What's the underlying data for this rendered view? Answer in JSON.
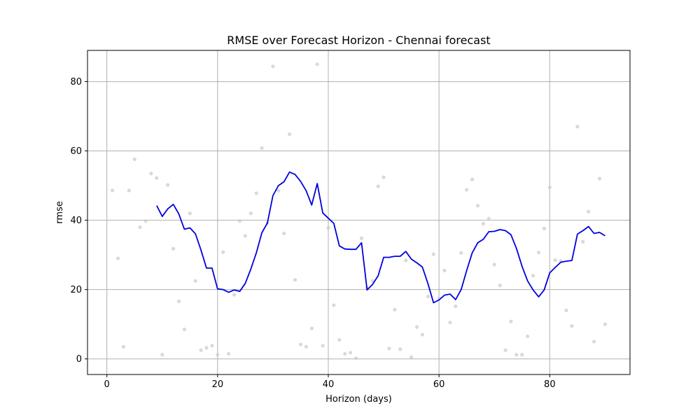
{
  "chart_data": {
    "type": "line",
    "title": "RMSE over Forecast Horizon - Chennai forecast",
    "xlabel": "Horizon (days)",
    "ylabel": "rmse",
    "xlim": [
      -3.5,
      94.5
    ],
    "ylim": [
      -4.5,
      89
    ],
    "x_ticks": [
      0,
      20,
      40,
      60,
      80
    ],
    "y_ticks": [
      0,
      20,
      40,
      60,
      80
    ],
    "grid": true,
    "line_color": "#0000dd",
    "scatter_color": "#cccccc",
    "series": [
      {
        "type": "line",
        "x": [
          9,
          10,
          11,
          12,
          13,
          14,
          15,
          16,
          17,
          18,
          19,
          20,
          21,
          22,
          23,
          24,
          25,
          26,
          27,
          28,
          29,
          30,
          31,
          32,
          33,
          34,
          35,
          36,
          37,
          38,
          39,
          40,
          41,
          42,
          43,
          44,
          45,
          46,
          47,
          48,
          49,
          50,
          51,
          52,
          53,
          54,
          55,
          56,
          57,
          58,
          59,
          60,
          61,
          62,
          63,
          64,
          65,
          66,
          67,
          68,
          69,
          70,
          71,
          72,
          73,
          74,
          75,
          76,
          77,
          78,
          79,
          80,
          81,
          82,
          83,
          84,
          85,
          86,
          87,
          88,
          89,
          90
        ],
        "y": [
          44.2,
          41.1,
          43.3,
          44.6,
          41.8,
          37.4,
          37.8,
          36.1,
          31.4,
          26.2,
          26.2,
          20.2,
          20.0,
          19.2,
          19.9,
          19.5,
          21.8,
          25.9,
          30.6,
          36.4,
          39.2,
          47.1,
          50.0,
          51.1,
          53.9,
          53.2,
          51.2,
          48.5,
          44.4,
          50.6,
          42.1,
          40.6,
          39.1,
          32.6,
          31.7,
          31.6,
          31.6,
          33.5,
          19.9,
          21.5,
          24.0,
          29.3,
          29.3,
          29.6,
          29.6,
          31.0,
          28.8,
          27.7,
          26.5,
          21.7,
          16.2,
          17.0,
          18.4,
          18.7,
          17.1,
          20.0,
          25.5,
          30.6,
          33.5,
          34.5,
          36.7,
          36.8,
          37.3,
          37.0,
          35.8,
          31.8,
          26.7,
          22.5,
          19.9,
          17.9,
          19.9,
          24.8,
          26.4,
          27.9,
          28.2,
          28.4,
          36.0,
          37.0,
          38.2,
          36.2,
          36.5,
          35.5
        ]
      },
      {
        "type": "scatter",
        "x": [
          1,
          2,
          3,
          4,
          5,
          6,
          7,
          8,
          9,
          10,
          11,
          12,
          13,
          14,
          15,
          16,
          17,
          18,
          19,
          20,
          21,
          22,
          23,
          24,
          25,
          26,
          27,
          28,
          29,
          30,
          31,
          32,
          33,
          34,
          35,
          36,
          37,
          38,
          39,
          40,
          41,
          42,
          43,
          44,
          45,
          46,
          47,
          48,
          49,
          50,
          51,
          52,
          53,
          54,
          55,
          56,
          57,
          58,
          59,
          60,
          61,
          62,
          63,
          64,
          65,
          66,
          67,
          68,
          69,
          70,
          71,
          72,
          73,
          74,
          75,
          76,
          77,
          78,
          79,
          80,
          81,
          82,
          83,
          84,
          85,
          86,
          87,
          88,
          89,
          90
        ],
        "y": [
          48.6,
          29,
          3.5,
          48.6,
          57.6,
          38,
          39.8,
          53.5,
          52.2,
          1.2,
          50.2,
          31.8,
          16.6,
          8.5,
          42,
          22.5,
          2.5,
          3.2,
          3.8,
          1.2,
          30.8,
          1.5,
          18.5,
          39.8,
          35.5,
          42,
          47.8,
          60.8,
          39.2,
          84.4,
          48.5,
          36.2,
          64.8,
          22.8,
          4.2,
          3.5,
          8.8,
          85,
          3.8,
          37.8,
          15.5,
          5.5,
          1.5,
          1.8,
          0.2,
          34.8,
          20.5,
          22.5,
          49.8,
          52.4,
          3,
          14.2,
          2.8,
          28.4,
          0.5,
          9.2,
          7,
          18,
          30.2,
          17.5,
          25.5,
          10.5,
          15.2,
          30.6,
          48.8,
          51.8,
          44.2,
          39,
          40.5,
          27.2,
          21.2,
          2.5,
          10.8,
          1.2,
          1.2,
          6.5,
          24,
          30.7,
          37.6,
          49.5,
          28.5,
          28.2,
          14,
          9.5,
          67,
          33.8,
          42.5,
          5,
          52,
          10
        ]
      }
    ]
  }
}
